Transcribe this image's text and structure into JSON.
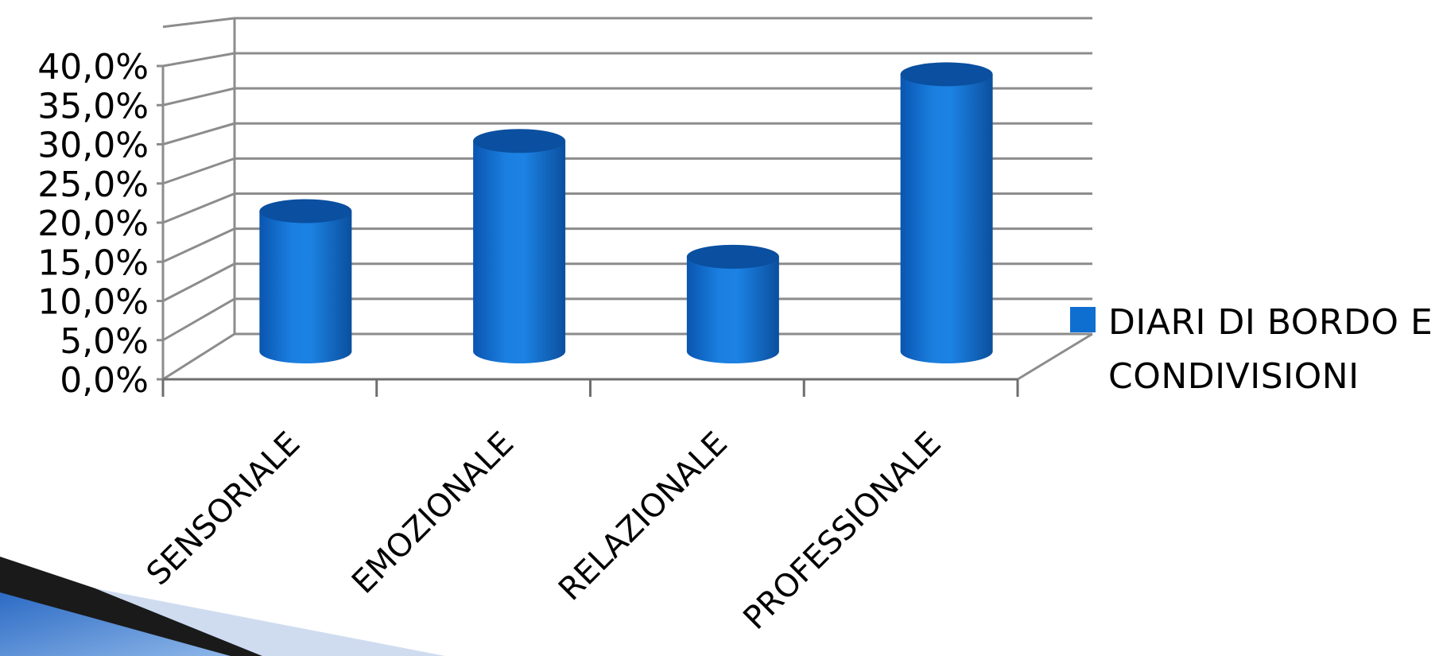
{
  "chart_data": {
    "type": "bar",
    "style": "3d-cylinder",
    "categories": [
      "SENSORIALE",
      "EMOZIONALE",
      "RELAZIONALE",
      "PROFESSIONALE"
    ],
    "series": [
      {
        "name": "DIARI DI BORDO E CONDIVISIONI",
        "values": [
          20.0,
          30.0,
          13.5,
          39.5
        ],
        "color": "#0f6fd1"
      }
    ],
    "ytick_labels": [
      "0,0%",
      "5,0%",
      "10,0%",
      "15,0%",
      "20,0%",
      "25,0%",
      "30,0%",
      "35,0%",
      "40,0%"
    ],
    "ylim": [
      0,
      40
    ],
    "grid": true,
    "legend_position": "right",
    "colors": {
      "bar": "#0f6fd1",
      "bar_dark": "#0a4fa0",
      "grid": "#8c8c8c",
      "axis": "#6e6e6e"
    }
  }
}
